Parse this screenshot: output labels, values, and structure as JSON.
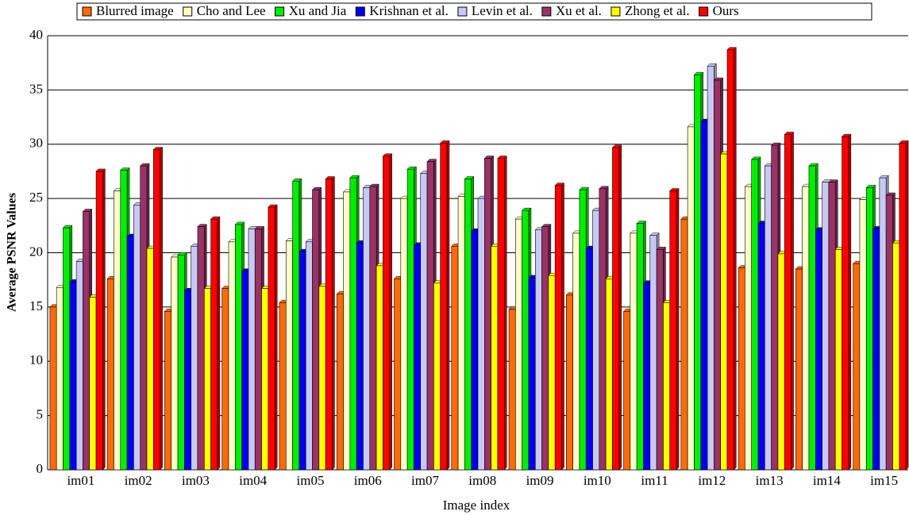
{
  "chart_data": {
    "type": "bar",
    "x_label": "Image index",
    "y_label": "Average PSNR Values",
    "categories": [
      "im01",
      "im02",
      "im03",
      "im04",
      "im05",
      "im06",
      "im07",
      "im08",
      "im09",
      "im10",
      "im11",
      "im12",
      "im13",
      "im14",
      "im15"
    ],
    "series": [
      {
        "name": "Blurred image",
        "color": "#ff6a0a",
        "values": [
          15.0,
          17.6,
          14.6,
          16.7,
          15.4,
          16.2,
          17.6,
          20.6,
          14.8,
          16.1,
          14.6,
          23.1,
          18.6,
          18.5,
          19.0
        ]
      },
      {
        "name": "Cho and Lee",
        "color": "#ffffc8",
        "values": [
          16.8,
          25.7,
          19.6,
          21.0,
          21.1,
          25.6,
          25.0,
          25.2,
          23.1,
          21.8,
          21.8,
          31.6,
          26.1,
          26.1,
          24.9
        ]
      },
      {
        "name": "Xu and Jia",
        "color": "#00ee00",
        "values": [
          22.3,
          27.6,
          19.8,
          22.6,
          26.6,
          26.9,
          27.7,
          26.8,
          23.9,
          25.8,
          22.7,
          36.4,
          28.6,
          28.0,
          26.0
        ]
      },
      {
        "name": "Krishnan et al.",
        "color": "#0000ee",
        "values": [
          17.3,
          21.5,
          16.5,
          18.3,
          20.1,
          20.9,
          20.7,
          22.0,
          17.7,
          20.4,
          17.2,
          32.1,
          22.7,
          22.1,
          22.2
        ]
      },
      {
        "name": "Levin et al.",
        "color": "#c8c8f5",
        "values": [
          19.2,
          24.4,
          20.6,
          22.2,
          21.0,
          26.0,
          27.3,
          25.0,
          22.1,
          23.9,
          21.6,
          37.2,
          28.0,
          26.5,
          26.9
        ]
      },
      {
        "name": "Xu et al.",
        "color": "#993366",
        "values": [
          23.8,
          28.0,
          22.4,
          22.2,
          25.8,
          26.1,
          28.4,
          28.7,
          22.4,
          25.9,
          20.3,
          35.9,
          29.9,
          26.5,
          25.3
        ]
      },
      {
        "name": "Zhong et al.",
        "color": "#ffff00",
        "values": [
          15.9,
          20.4,
          16.7,
          16.7,
          16.9,
          18.8,
          17.2,
          20.6,
          17.9,
          17.6,
          15.4,
          29.1,
          19.9,
          20.3,
          20.9
        ]
      },
      {
        "name": "Ours",
        "color": "#ff0000",
        "values": [
          27.5,
          29.5,
          23.1,
          24.2,
          26.8,
          28.9,
          30.1,
          28.7,
          26.2,
          29.7,
          25.7,
          38.7,
          30.9,
          30.7,
          30.1
        ]
      }
    ],
    "ylim": [
      0,
      40
    ],
    "yticks": [
      0,
      5,
      10,
      15,
      20,
      25,
      30,
      35,
      40
    ],
    "grid": true
  }
}
